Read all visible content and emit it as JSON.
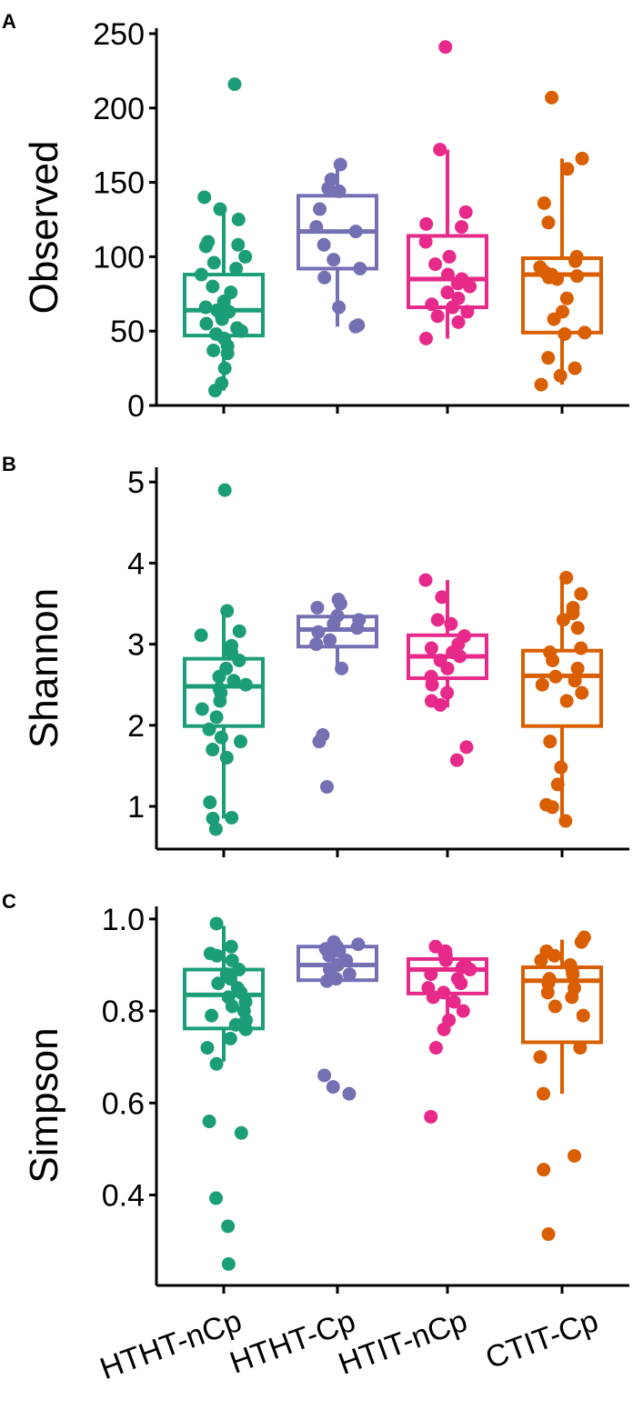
{
  "colors": {
    "HTHT-nCp": "#1b9e77",
    "HTHT-Cp": "#7570b3",
    "HTIT-nCp": "#e7298a",
    "CTIT-Cp": "#d95f02"
  },
  "categories": [
    "HTHT-nCp",
    "HTHT-Cp",
    "HTIT-nCp",
    "CTIT-Cp"
  ],
  "chart_data": [
    {
      "type": "box",
      "panel": "A",
      "ylabel": "Observed",
      "ylim": [
        0,
        250
      ],
      "yticks": [
        0,
        50,
        100,
        150,
        200,
        250
      ],
      "categories": [
        "HTHT-nCp",
        "HTHT-Cp",
        "HTIT-nCp",
        "CTIT-Cp"
      ],
      "boxes": [
        {
          "q1": 47,
          "median": 64,
          "q3": 88,
          "whisker_low": 10,
          "whisker_high": 131
        },
        {
          "q1": 92,
          "median": 117,
          "q3": 141,
          "whisker_low": 53,
          "whisker_high": 162
        },
        {
          "q1": 66,
          "median": 85,
          "q3": 114,
          "whisker_low": 45,
          "whisker_high": 172
        },
        {
          "q1": 49,
          "median": 88,
          "q3": 99,
          "whisker_low": 14,
          "whisker_high": 166
        }
      ],
      "points": [
        [
          216,
          140,
          132,
          125,
          110,
          108,
          107,
          100,
          96,
          92,
          88,
          80,
          76,
          70,
          66,
          64,
          63,
          60,
          58,
          55,
          52,
          50,
          48,
          45,
          40,
          37,
          35,
          25,
          15,
          10
        ],
        [
          162,
          152,
          146,
          144,
          132,
          120,
          117,
          108,
          98,
          92,
          86,
          66,
          54,
          53
        ],
        [
          241,
          172,
          130,
          122,
          120,
          110,
          100,
          95,
          88,
          85,
          82,
          80,
          76,
          72,
          68,
          66,
          63,
          60,
          56,
          45
        ],
        [
          207,
          166,
          159,
          136,
          123,
          100,
          97,
          93,
          90,
          88,
          87,
          86,
          85,
          72,
          63,
          58,
          49,
          48,
          32,
          25,
          20,
          14
        ]
      ]
    },
    {
      "type": "box",
      "panel": "B",
      "ylabel": "Shannon",
      "ylim": [
        0.6,
        5.1
      ],
      "yticks": [
        1,
        2,
        3,
        4,
        5
      ],
      "categories": [
        "HTHT-nCp",
        "HTHT-Cp",
        "HTIT-nCp",
        "CTIT-Cp"
      ],
      "boxes": [
        {
          "q1": 1.99,
          "median": 2.48,
          "q3": 2.82,
          "whisker_low": 0.85,
          "whisker_high": 3.39
        },
        {
          "q1": 2.97,
          "median": 3.18,
          "q3": 3.34,
          "whisker_low": 2.7,
          "whisker_high": 3.55
        },
        {
          "q1": 2.58,
          "median": 2.85,
          "q3": 3.11,
          "whisker_low": 2.22,
          "whisker_high": 3.79
        },
        {
          "q1": 1.99,
          "median": 2.61,
          "q3": 2.92,
          "whisker_low": 0.8,
          "whisker_high": 3.79
        }
      ],
      "points": [
        [
          4.9,
          3.41,
          3.16,
          3.11,
          2.98,
          2.9,
          2.8,
          2.7,
          2.6,
          2.55,
          2.5,
          2.45,
          2.4,
          2.3,
          2.2,
          2.1,
          1.95,
          1.85,
          1.8,
          1.7,
          1.6,
          1.05,
          0.86,
          0.85,
          0.72
        ],
        [
          3.55,
          3.5,
          3.45,
          3.35,
          3.3,
          3.25,
          3.2,
          3.15,
          3.05,
          3.0,
          2.7,
          1.88,
          1.8,
          1.24
        ],
        [
          3.79,
          3.58,
          3.3,
          3.25,
          3.1,
          3.0,
          2.95,
          2.9,
          2.85,
          2.8,
          2.7,
          2.6,
          2.5,
          2.4,
          2.3,
          2.25,
          1.73,
          1.57
        ],
        [
          3.82,
          3.62,
          3.45,
          3.38,
          3.3,
          3.2,
          2.95,
          2.9,
          2.8,
          2.7,
          2.6,
          2.55,
          2.5,
          2.4,
          2.3,
          1.8,
          1.48,
          1.27,
          1.02,
          0.99,
          0.82
        ]
      ]
    },
    {
      "type": "box",
      "panel": "C",
      "ylabel": "Simpson",
      "ylim": [
        0.22,
        1.02
      ],
      "yticks": [
        0.4,
        0.6,
        0.8,
        1.0
      ],
      "yticklabels": [
        "0.4",
        "0.6",
        "0.8",
        "1.0"
      ],
      "categories": [
        "HTHT-nCp",
        "HTHT-Cp",
        "HTIT-nCp",
        "CTIT-Cp"
      ],
      "boxes": [
        {
          "q1": 0.762,
          "median": 0.835,
          "q3": 0.89,
          "whisker_low": 0.69,
          "whisker_high": 0.985
        },
        {
          "q1": 0.867,
          "median": 0.9,
          "q3": 0.94,
          "whisker_low": 0.862,
          "whisker_high": 0.95
        },
        {
          "q1": 0.838,
          "median": 0.89,
          "q3": 0.913,
          "whisker_low": 0.78,
          "whisker_high": 0.94
        },
        {
          "q1": 0.732,
          "median": 0.866,
          "q3": 0.895,
          "whisker_low": 0.62,
          "whisker_high": 0.955
        }
      ],
      "points": [
        [
          0.99,
          0.94,
          0.925,
          0.92,
          0.91,
          0.89,
          0.88,
          0.87,
          0.86,
          0.85,
          0.84,
          0.83,
          0.82,
          0.81,
          0.8,
          0.79,
          0.78,
          0.77,
          0.76,
          0.74,
          0.72,
          0.685,
          0.56,
          0.535,
          0.393,
          0.332,
          0.25
        ],
        [
          0.95,
          0.945,
          0.94,
          0.935,
          0.93,
          0.92,
          0.91,
          0.9,
          0.89,
          0.88,
          0.87,
          0.865,
          0.66,
          0.635,
          0.62
        ],
        [
          0.94,
          0.93,
          0.925,
          0.92,
          0.91,
          0.9,
          0.895,
          0.89,
          0.88,
          0.87,
          0.86,
          0.85,
          0.84,
          0.83,
          0.82,
          0.8,
          0.78,
          0.76,
          0.72,
          0.57
        ],
        [
          0.96,
          0.95,
          0.93,
          0.92,
          0.91,
          0.9,
          0.89,
          0.88,
          0.87,
          0.86,
          0.85,
          0.84,
          0.83,
          0.81,
          0.79,
          0.72,
          0.7,
          0.62,
          0.485,
          0.455,
          0.315
        ]
      ]
    }
  ]
}
